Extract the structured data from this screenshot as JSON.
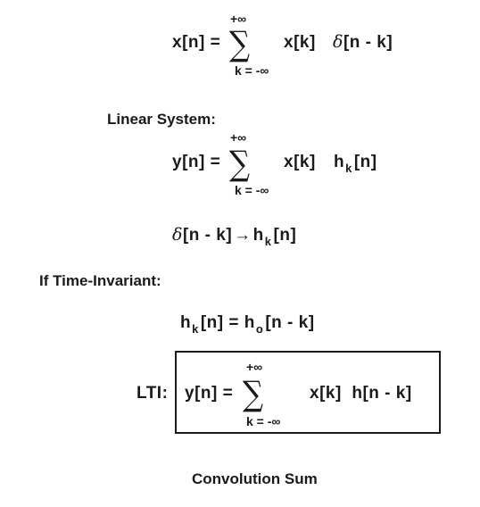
{
  "eq1": {
    "lhs": "x[n] =",
    "upper": "+∞",
    "lower": "k = -∞",
    "sigma": "∑",
    "term1": "x[k]",
    "delta": "δ",
    "term2": "[n - k]"
  },
  "label_linear": "Linear System:",
  "eq2": {
    "lhs": "y[n] =",
    "upper": "+∞",
    "lower": "k = -∞",
    "sigma": "∑",
    "term1": "x[k]",
    "h": "h",
    "sub": "k",
    "term2": "[n]"
  },
  "eq3": {
    "delta": "δ",
    "term1": "[n - k]",
    "arrow": "→",
    "h": "h",
    "sub": "k",
    "term2": "[n]"
  },
  "label_ti": "If Time-Invariant:",
  "eq4": {
    "h1": "h",
    "sub1": "k",
    "mid": "[n] = h",
    "sub2": "o",
    "term2": "[n - k]"
  },
  "eq5": {
    "label": "LTI:",
    "lhs": "y[n] =",
    "upper": "+∞",
    "lower": "k = -∞",
    "sigma": "∑",
    "term": "x[k]  h[n - k]"
  },
  "caption": "Convolution Sum"
}
